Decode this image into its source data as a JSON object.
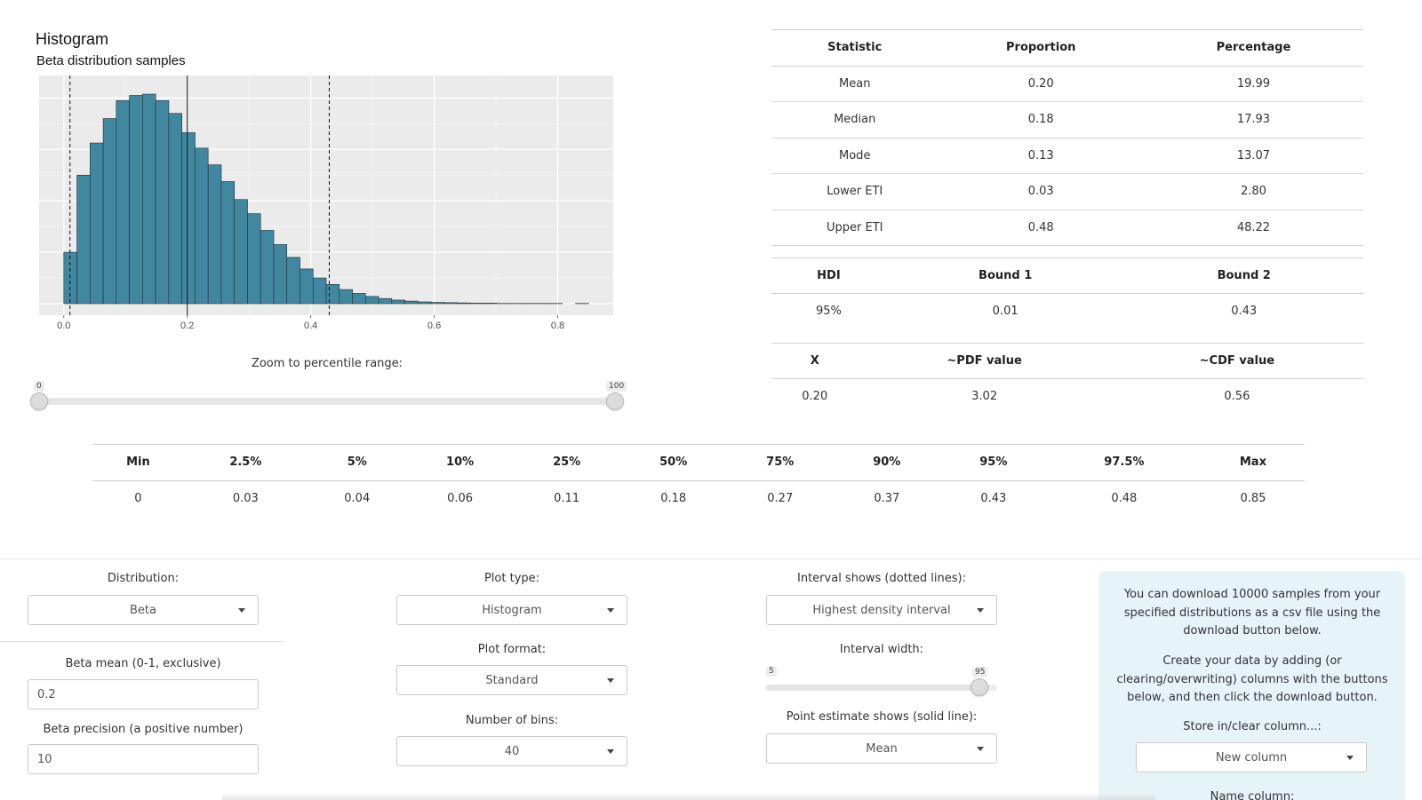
{
  "histogram": {
    "title": "Histogram",
    "subtitle": "Beta distribution samples"
  },
  "chart_data": {
    "type": "bar",
    "title": "Histogram",
    "subtitle": "Beta distribution samples",
    "xlabel": "",
    "ylabel": "",
    "xlim": [
      -0.04,
      0.89
    ],
    "x_ticks": [
      "0.0",
      "0.2",
      "0.4",
      "0.6",
      "0.8"
    ],
    "x_tick_values": [
      0.0,
      0.2,
      0.4,
      0.6,
      0.8
    ],
    "bin_width": 0.0213,
    "bin_starts": [
      0.0,
      0.0213,
      0.0425,
      0.0638,
      0.085,
      0.1063,
      0.1275,
      0.1488,
      0.17,
      0.1913,
      0.2125,
      0.2338,
      0.255,
      0.2763,
      0.2975,
      0.3188,
      0.34,
      0.3613,
      0.3825,
      0.4038,
      0.425,
      0.4463,
      0.4675,
      0.4888,
      0.51,
      0.5313,
      0.5525,
      0.5738,
      0.595,
      0.6163,
      0.6375,
      0.6588,
      0.68,
      0.7013,
      0.7225,
      0.7438,
      0.765,
      0.7863,
      0.8075,
      0.8288
    ],
    "counts": [
      200,
      500,
      625,
      720,
      790,
      810,
      815,
      790,
      740,
      665,
      605,
      540,
      475,
      405,
      350,
      285,
      230,
      180,
      135,
      100,
      75,
      55,
      40,
      28,
      20,
      14,
      10,
      7,
      5,
      4,
      3,
      2,
      2,
      1,
      1,
      1,
      1,
      1,
      0,
      1
    ],
    "ylim": [
      0,
      860
    ],
    "grid": true,
    "background": "#ebebeb",
    "bar_color": "#4287a0",
    "solid_line": {
      "label": "Mean",
      "x": 0.2
    },
    "dotted_lines": {
      "label": "Highest density interval",
      "x": [
        0.01,
        0.43
      ]
    }
  },
  "zoom": {
    "label": "Zoom to percentile range:",
    "min_label": "0",
    "max_label": "100",
    "low": 0,
    "high": 100
  },
  "stats_table": {
    "headers": [
      "Statistic",
      "Proportion",
      "Percentage"
    ],
    "rows": [
      [
        "Mean",
        "0.20",
        "19.99"
      ],
      [
        "Median",
        "0.18",
        "17.93"
      ],
      [
        "Mode",
        "0.13",
        "13.07"
      ],
      [
        "Lower ETI",
        "0.03",
        "2.80"
      ],
      [
        "Upper ETI",
        "0.48",
        "48.22"
      ]
    ]
  },
  "hdi_table": {
    "headers": [
      "HDI",
      "Bound 1",
      "Bound 2"
    ],
    "rows": [
      [
        "95%",
        "0.01",
        "0.43"
      ]
    ]
  },
  "x_table": {
    "headers": [
      "X",
      "~PDF value",
      "~CDF value"
    ],
    "rows": [
      [
        "0.20",
        "3.02",
        "0.56"
      ]
    ]
  },
  "percentile_table": {
    "headers": [
      "Min",
      "2.5%",
      "5%",
      "10%",
      "25%",
      "50%",
      "75%",
      "90%",
      "95%",
      "97.5%",
      "Max"
    ],
    "rows": [
      [
        "0",
        "0.03",
        "0.04",
        "0.06",
        "0.11",
        "0.18",
        "0.27",
        "0.37",
        "0.43",
        "0.48",
        "0.85"
      ]
    ]
  },
  "controls": {
    "distribution": {
      "label": "Distribution:",
      "value": "Beta"
    },
    "beta_mean": {
      "label": "Beta mean (0-1, exclusive)",
      "value": "0.2"
    },
    "beta_precision": {
      "label": "Beta precision (a positive number)",
      "value": "10"
    },
    "plot_type": {
      "label": "Plot type:",
      "value": "Histogram"
    },
    "plot_format": {
      "label": "Plot format:",
      "value": "Standard"
    },
    "num_bins": {
      "label": "Number of bins:",
      "value": "40"
    },
    "interval_shows": {
      "label": "Interval shows (dotted lines):",
      "value": "Highest density interval"
    },
    "interval_width": {
      "label": "Interval width:",
      "min_label": "5",
      "value_label": "95",
      "min": 5,
      "max": 99,
      "value": 95
    },
    "point_estimate": {
      "label": "Point estimate shows (solid line):",
      "value": "Mean"
    }
  },
  "download": {
    "text1": "You can download 10000 samples from your specified distributions as a csv file using the download button below.",
    "text2": "Create your data by adding (or clearing/overwriting) columns with the buttons below, and then click the download button.",
    "store_label": "Store in/clear column...:",
    "store_value": "New column",
    "name_label": "Name column:"
  }
}
